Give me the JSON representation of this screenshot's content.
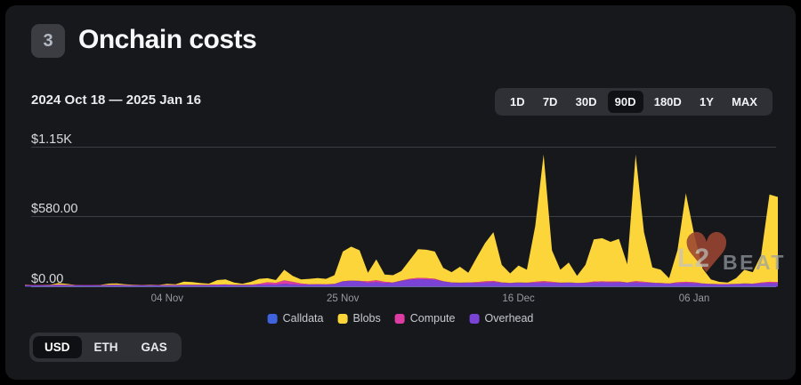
{
  "header": {
    "badge": "3",
    "title": "Onchain costs"
  },
  "date_range": "2024 Oct 18 — 2025 Jan 16",
  "time_ranges": {
    "options": [
      "1D",
      "7D",
      "30D",
      "90D",
      "180D",
      "1Y",
      "MAX"
    ],
    "selected": "90D"
  },
  "unit_toggle": {
    "options": [
      "USD",
      "ETH",
      "GAS"
    ],
    "selected": "USD"
  },
  "watermark": {
    "l2": "L2",
    "beat": "BEAT",
    "heart": "♥"
  },
  "colors": {
    "background": "#17181c",
    "calldata": "#3e63dd",
    "blobs": "#fcd53a",
    "compute": "#dd3da2",
    "overhead": "#7a43d6",
    "gridline": "#3b3e44",
    "zero_line": "#71757c"
  },
  "chart_data": {
    "type": "area",
    "stacked": true,
    "title": "Onchain costs",
    "unit": "USD",
    "x_start": "2024-10-18",
    "x_end": "2025-01-16",
    "days": 91,
    "grid": true,
    "legend_position": "bottom-center",
    "y_ticks": [
      {
        "label": "$1.15K",
        "value": 1150
      },
      {
        "label": "$580.00",
        "value": 580
      },
      {
        "label": "$0.00",
        "value": 0
      }
    ],
    "ylim": [
      0,
      1265
    ],
    "x_ticks": [
      {
        "label": "04 Nov",
        "day": 17
      },
      {
        "label": "25 Nov",
        "day": 38
      },
      {
        "label": "16 Dec",
        "day": 59
      },
      {
        "label": "06 Jan",
        "day": 80
      }
    ],
    "legend": [
      {
        "label": "Calldata",
        "color": "#3e63dd"
      },
      {
        "label": "Blobs",
        "color": "#fcd53a"
      },
      {
        "label": "Compute",
        "color": "#dd3da2"
      },
      {
        "label": "Overhead",
        "color": "#7a43d6"
      }
    ],
    "series": [
      {
        "name": "Calldata",
        "color": "#3e63dd",
        "values": [
          3,
          3,
          3,
          3,
          3,
          3,
          3,
          3,
          3,
          3,
          3,
          3,
          3,
          3,
          3,
          3,
          3,
          3,
          3,
          3,
          3,
          3,
          3,
          3,
          3,
          3,
          3,
          3,
          3,
          3,
          3,
          3,
          3,
          3,
          3,
          3,
          3,
          3,
          3,
          3,
          3,
          3,
          3,
          3,
          3,
          3,
          3,
          3,
          3,
          3,
          3,
          3,
          3,
          3,
          3,
          3,
          3,
          3,
          3,
          3,
          3,
          3,
          3,
          3,
          3,
          3,
          3,
          3,
          3,
          3,
          3,
          3,
          3,
          3,
          3,
          3,
          3,
          3,
          3,
          3,
          3,
          3,
          3,
          3,
          3,
          3,
          3,
          3,
          3,
          3,
          3
        ]
      },
      {
        "name": "Overhead",
        "color": "#7a43d6",
        "values": [
          8,
          8,
          8,
          9,
          12,
          10,
          8,
          8,
          8,
          8,
          10,
          11,
          9,
          8,
          8,
          8,
          8,
          9,
          9,
          11,
          11,
          10,
          10,
          12,
          13,
          11,
          10,
          11,
          14,
          16,
          15,
          22,
          18,
          14,
          15,
          16,
          15,
          18,
          40,
          45,
          42,
          30,
          35,
          28,
          30,
          45,
          55,
          60,
          58,
          55,
          40,
          30,
          28,
          30,
          28,
          32,
          35,
          30,
          26,
          30,
          28,
          30,
          32,
          30,
          28,
          30,
          26,
          28,
          32,
          34,
          32,
          33,
          30,
          32,
          30,
          28,
          25,
          22,
          26,
          28,
          26,
          22,
          18,
          16,
          16,
          18,
          22,
          20,
          24,
          28,
          26
        ]
      },
      {
        "name": "Compute",
        "color": "#dd3da2",
        "values": [
          3,
          3,
          3,
          3,
          3,
          3,
          3,
          3,
          3,
          3,
          3,
          3,
          3,
          3,
          3,
          3,
          3,
          3,
          3,
          3,
          3,
          3,
          3,
          3,
          3,
          3,
          3,
          3,
          8,
          18,
          14,
          28,
          20,
          10,
          3,
          3,
          3,
          3,
          3,
          3,
          3,
          12,
          16,
          10,
          3,
          3,
          8,
          10,
          10,
          8,
          3,
          3,
          3,
          3,
          8,
          10,
          10,
          3,
          3,
          3,
          3,
          8,
          12,
          8,
          3,
          3,
          3,
          3,
          8,
          8,
          8,
          8,
          3,
          12,
          8,
          3,
          3,
          3,
          8,
          10,
          8,
          3,
          3,
          3,
          3,
          3,
          3,
          3,
          8,
          10,
          10
        ]
      },
      {
        "name": "Blobs",
        "color": "#fcd53a",
        "values": [
          2,
          0,
          1,
          1,
          12,
          8,
          1,
          0,
          0,
          1,
          10,
          11,
          5,
          2,
          1,
          2,
          1,
          9,
          5,
          25,
          21,
          14,
          10,
          37,
          41,
          18,
          9,
          23,
          40,
          33,
          23,
          87,
          49,
          33,
          44,
          50,
          44,
          71,
          244,
          279,
          252,
          70,
          171,
          59,
          59,
          79,
          154,
          237,
          234,
          224,
          109,
          84,
          131,
          79,
          201,
          315,
          402,
          144,
          78,
          139,
          106,
          459,
          1043,
          259,
          106,
          164,
          58,
          146,
          347,
          355,
          327,
          351,
          149,
          1043,
          409,
          126,
          109,
          42,
          263,
          729,
          393,
          122,
          36,
          18,
          13,
          46,
          112,
          94,
          225,
          719,
          701
        ]
      }
    ]
  }
}
